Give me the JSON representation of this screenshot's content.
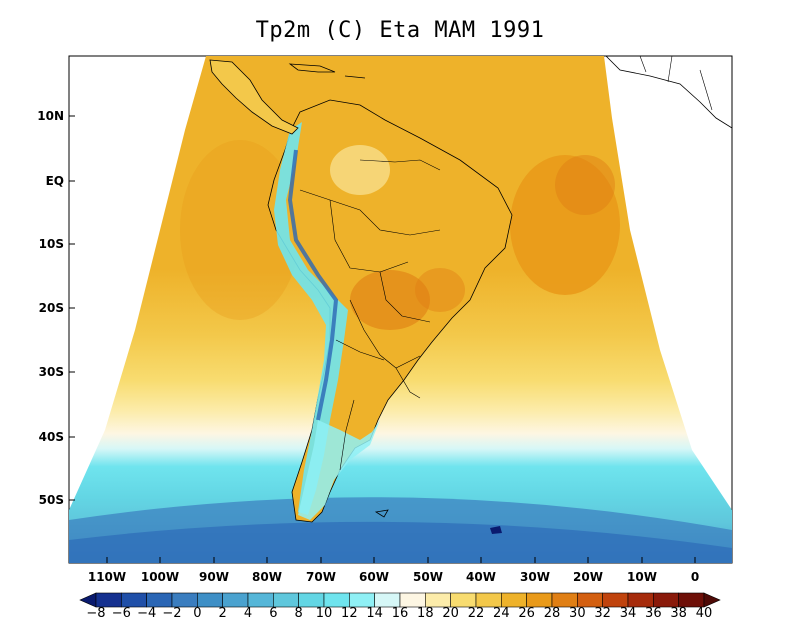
{
  "title": "Tp2m (C) Eta MAM 1991",
  "map": {
    "variable": "Tp2m",
    "unit": "C",
    "model": "Eta",
    "season": "MAM",
    "year": "1991",
    "projection": "conic",
    "lat_labels": [
      "10N",
      "EQ",
      "10S",
      "20S",
      "30S",
      "40S",
      "50S"
    ],
    "lon_labels": [
      "110W",
      "100W",
      "90W",
      "80W",
      "70W",
      "60W",
      "50W",
      "40W",
      "30W",
      "20W",
      "10W",
      "0"
    ]
  },
  "colorbar": {
    "levels": [
      "-8",
      "-6",
      "-4",
      "-2",
      "0",
      "2",
      "4",
      "6",
      "8",
      "10",
      "12",
      "14",
      "16",
      "18",
      "20",
      "22",
      "24",
      "26",
      "28",
      "30",
      "32",
      "34",
      "36",
      "38",
      "40"
    ],
    "colors": [
      "#0a1a6e",
      "#14308f",
      "#1f4fa8",
      "#2a66b5",
      "#3a7dbf",
      "#3e8fc6",
      "#4aa2cf",
      "#55b6d8",
      "#5fc7dc",
      "#63d6e4",
      "#6fe4ee",
      "#8ff0f5",
      "#d6f7f7",
      "#fdf6e3",
      "#fcecaa",
      "#f8dc70",
      "#f3c84a",
      "#eeb22a",
      "#e99a1a",
      "#e07f14",
      "#d35f10",
      "#c0430d",
      "#a62b0b",
      "#8a1a0a",
      "#6e0f08",
      "#4e0a06"
    ]
  }
}
